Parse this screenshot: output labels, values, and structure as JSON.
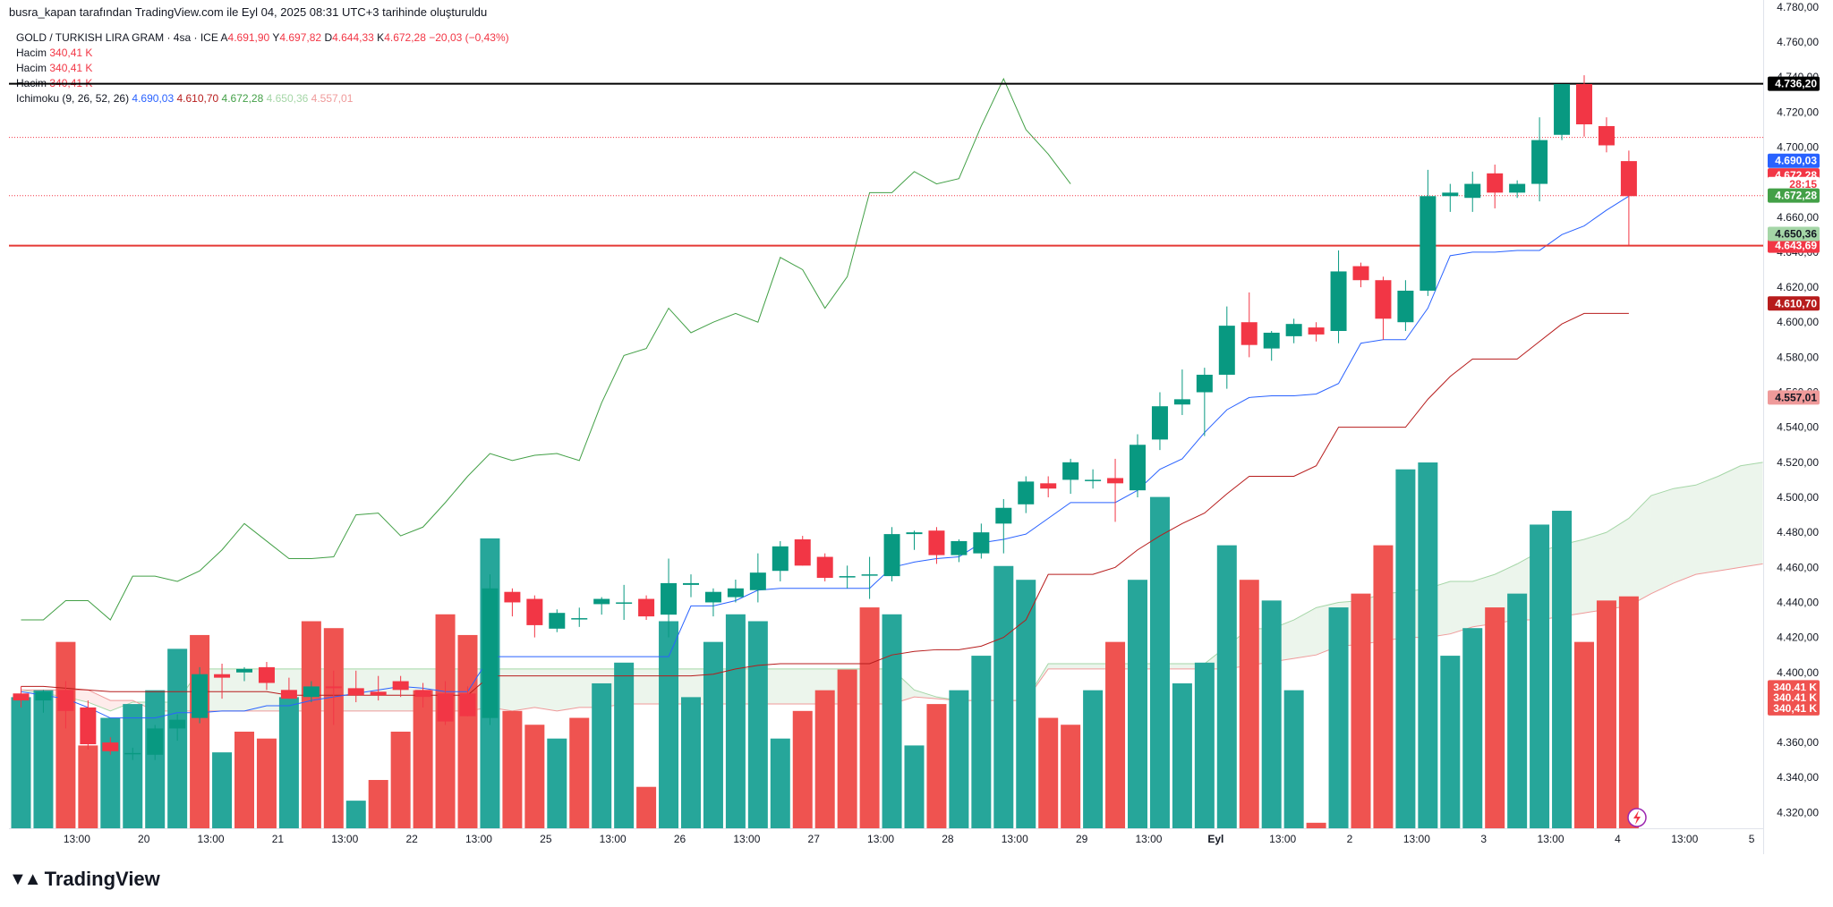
{
  "header": {
    "note": "busra_kapan tarafından TradingView.com ile Eyl 04, 2025 08:31 UTC+3 tarihinde oluşturuldu"
  },
  "legend": {
    "symbol": "GOLD / TURKISH LIRA GRAM · 4sa · ICE",
    "ohlc": [
      {
        "k": "A",
        "v": "4.691,90"
      },
      {
        "k": "Y",
        "v": "4.697,82"
      },
      {
        "k": "D",
        "v": "4.644,33"
      },
      {
        "k": "K",
        "v": "4.672,28"
      }
    ],
    "change": "−20,03 (−0,43%)",
    "volume_rows": [
      {
        "label": "Hacim",
        "value": "340,41 K"
      },
      {
        "label": "Hacim",
        "value": "340,41 K"
      },
      {
        "label": "Hacim",
        "value": "340,41 K"
      }
    ],
    "ichimoku_label": "Ichimoku (9, 26, 52, 26)",
    "ichimoku_values": [
      "4.690,03",
      "4.610,70",
      "4.672,28",
      "4.650,36",
      "4.557,01"
    ]
  },
  "colors": {
    "up": "#089981",
    "down": "#f23645",
    "vol_up": "#26a69a",
    "vol_down": "#ef5350",
    "tenkan": "#2962ff",
    "kijun": "#b71c1c",
    "chikou": "#43a047",
    "span_a": "#a5d6a7",
    "span_b": "#ef9a9a"
  },
  "branding": {
    "logo": "TradingView"
  },
  "chart_data": {
    "type": "candlestick",
    "title": "GOLD / TURKISH LIRA GRAM · 4sa · ICE",
    "y_ticks": [
      4320,
      4340,
      4360,
      4380,
      4400,
      4420,
      4440,
      4460,
      4480,
      4500,
      4520,
      4540,
      4560,
      4580,
      4600,
      4620,
      4640,
      4660,
      4680,
      4700,
      4720,
      4740,
      4760,
      4780
    ],
    "y_tick_labels": [
      "4.320,00",
      "4.340,00",
      "4.360,00",
      "4.380,00",
      "4.400,00",
      "4.420,00",
      "4.440,00",
      "4.460,00",
      "4.480,00",
      "4.500,00",
      "4.520,00",
      "4.540,00",
      "4.560,00",
      "4.580,00",
      "4.600,00",
      "4.620,00",
      "4.640,00",
      "4.660,00",
      "4.680,00",
      "4.700,00",
      "4.720,00",
      "4.740,00",
      "4.760,00",
      "4.780,00"
    ],
    "ylim": [
      4311,
      4784
    ],
    "x_ticks": [
      {
        "i": 2.5,
        "label": "13:00"
      },
      {
        "i": 5.5,
        "label": "20"
      },
      {
        "i": 8.5,
        "label": "13:00"
      },
      {
        "i": 11.5,
        "label": "21"
      },
      {
        "i": 14.5,
        "label": "13:00"
      },
      {
        "i": 17.5,
        "label": "22"
      },
      {
        "i": 20.5,
        "label": "13:00"
      },
      {
        "i": 23.5,
        "label": "25"
      },
      {
        "i": 26.5,
        "label": "13:00"
      },
      {
        "i": 29.5,
        "label": "26"
      },
      {
        "i": 32.5,
        "label": "13:00"
      },
      {
        "i": 35.5,
        "label": "27"
      },
      {
        "i": 38.5,
        "label": "13:00"
      },
      {
        "i": 41.5,
        "label": "28"
      },
      {
        "i": 44.5,
        "label": "13:00"
      },
      {
        "i": 47.5,
        "label": "29"
      },
      {
        "i": 50.5,
        "label": "13:00"
      },
      {
        "i": 53.5,
        "label": "Eyl"
      },
      {
        "i": 56.5,
        "label": "13:00"
      },
      {
        "i": 59.5,
        "label": "2"
      },
      {
        "i": 62.5,
        "label": "13:00"
      },
      {
        "i": 65.5,
        "label": "3"
      },
      {
        "i": 68.5,
        "label": "13:00"
      },
      {
        "i": 71.5,
        "label": "4"
      },
      {
        "i": 74.5,
        "label": "13:00"
      },
      {
        "i": 77.5,
        "label": "5"
      }
    ],
    "candles": [
      [
        4388,
        4392,
        4380,
        4384
      ],
      [
        4384,
        4390,
        4377,
        4389
      ],
      [
        4390,
        4395,
        4368,
        4378
      ],
      [
        4380,
        4384,
        4356,
        4359
      ],
      [
        4360,
        4363,
        4353,
        4355
      ],
      [
        4354,
        4357,
        4350,
        4354
      ],
      [
        4353,
        4370,
        4350,
        4368
      ],
      [
        4368,
        4376,
        4361,
        4373
      ],
      [
        4374,
        4403,
        4371,
        4399
      ],
      [
        4399,
        4405,
        4385,
        4397
      ],
      [
        4400,
        4403,
        4395,
        4402
      ],
      [
        4403,
        4406,
        4390,
        4394
      ],
      [
        4390,
        4397,
        4385,
        4385
      ],
      [
        4386,
        4395,
        4383,
        4392
      ],
      [
        4392,
        4401,
        4370,
        4391
      ],
      [
        4391,
        4401,
        4383,
        4387
      ],
      [
        4389,
        4398,
        4384,
        4387
      ],
      [
        4395,
        4398,
        4386,
        4390
      ],
      [
        4390,
        4394,
        4380,
        4386
      ],
      [
        4388,
        4395,
        4370,
        4372
      ],
      [
        4388,
        4392,
        4375,
        4375
      ],
      [
        4374,
        4456,
        4370,
        4448
      ],
      [
        4446,
        4448,
        4432,
        4440
      ],
      [
        4442,
        4444,
        4420,
        4427
      ],
      [
        4425,
        4436,
        4423,
        4434
      ],
      [
        4431,
        4437,
        4426,
        4431
      ],
      [
        4439,
        4443,
        4433,
        4442
      ],
      [
        4440,
        4450,
        4430,
        4440
      ],
      [
        4442,
        4444,
        4430,
        4432
      ],
      [
        4433,
        4465,
        4420,
        4451
      ],
      [
        4450,
        4456,
        4443,
        4451
      ],
      [
        4440,
        4448,
        4432,
        4446
      ],
      [
        4443,
        4453,
        4440,
        4448
      ],
      [
        4447,
        4468,
        4440,
        4457
      ],
      [
        4458,
        4475,
        4452,
        4472
      ],
      [
        4476,
        4478,
        4461,
        4461
      ],
      [
        4466,
        4468,
        4452,
        4454
      ],
      [
        4455,
        4461,
        4448,
        4455
      ],
      [
        4456,
        4466,
        4442,
        4456
      ],
      [
        4455,
        4483,
        4452,
        4479
      ],
      [
        4479,
        4481,
        4470,
        4480
      ],
      [
        4481,
        4483,
        4462,
        4467
      ],
      [
        4467,
        4476,
        4463,
        4475
      ],
      [
        4468,
        4485,
        4465,
        4480
      ],
      [
        4485,
        4499,
        4468,
        4494
      ],
      [
        4496,
        4512,
        4491,
        4509
      ],
      [
        4508,
        4512,
        4500,
        4505
      ],
      [
        4510,
        4522,
        4502,
        4520
      ],
      [
        4510,
        4516,
        4505,
        4510
      ],
      [
        4511,
        4522,
        4486,
        4508
      ],
      [
        4504,
        4536,
        4500,
        4530
      ],
      [
        4533,
        4560,
        4527,
        4552
      ],
      [
        4553,
        4573,
        4547,
        4556
      ],
      [
        4560,
        4574,
        4535,
        4570
      ],
      [
        4570,
        4609,
        4562,
        4598
      ],
      [
        4600,
        4617,
        4580,
        4587
      ],
      [
        4585,
        4595,
        4578,
        4594
      ],
      [
        4592,
        4602,
        4588,
        4599
      ],
      [
        4597,
        4600,
        4589,
        4593
      ],
      [
        4595,
        4641,
        4588,
        4629
      ],
      [
        4632,
        4634,
        4620,
        4624
      ],
      [
        4624,
        4626,
        4590,
        4602
      ],
      [
        4600,
        4624,
        4595,
        4618
      ],
      [
        4618,
        4687,
        4615,
        4672
      ],
      [
        4672,
        4679,
        4663,
        4674
      ],
      [
        4671,
        4686,
        4663,
        4679
      ],
      [
        4685,
        4690,
        4665,
        4674
      ],
      [
        4674,
        4681,
        4671,
        4679
      ],
      [
        4679,
        4717,
        4669,
        4704
      ],
      [
        4707,
        4736,
        4704,
        4736
      ],
      [
        4736,
        4741,
        4706,
        4713
      ],
      [
        4712,
        4717,
        4697,
        4701
      ],
      [
        4692,
        4698,
        4644,
        4672
      ]
    ],
    "volume": [
      {
        "v": 335,
        "up": true
      },
      {
        "v": 340,
        "up": true
      },
      {
        "v": 375,
        "up": false
      },
      {
        "v": 300,
        "up": false
      },
      {
        "v": 320,
        "up": true
      },
      {
        "v": 330,
        "up": true
      },
      {
        "v": 340,
        "up": true
      },
      {
        "v": 370,
        "up": true
      },
      {
        "v": 380,
        "up": false
      },
      {
        "v": 295,
        "up": true
      },
      {
        "v": 310,
        "up": false
      },
      {
        "v": 305,
        "up": false
      },
      {
        "v": 335,
        "up": true
      },
      {
        "v": 390,
        "up": false
      },
      {
        "v": 385,
        "up": false
      },
      {
        "v": 260,
        "up": true
      },
      {
        "v": 275,
        "up": false
      },
      {
        "v": 310,
        "up": false
      },
      {
        "v": 340,
        "up": false
      },
      {
        "v": 395,
        "up": false
      },
      {
        "v": 380,
        "up": false
      },
      {
        "v": 450,
        "up": true
      },
      {
        "v": 325,
        "up": false
      },
      {
        "v": 315,
        "up": false
      },
      {
        "v": 305,
        "up": true
      },
      {
        "v": 320,
        "up": false
      },
      {
        "v": 345,
        "up": true
      },
      {
        "v": 360,
        "up": true
      },
      {
        "v": 270,
        "up": false
      },
      {
        "v": 390,
        "up": true
      },
      {
        "v": 335,
        "up": true
      },
      {
        "v": 375,
        "up": true
      },
      {
        "v": 395,
        "up": true
      },
      {
        "v": 390,
        "up": true
      },
      {
        "v": 305,
        "up": true
      },
      {
        "v": 325,
        "up": false
      },
      {
        "v": 340,
        "up": false
      },
      {
        "v": 355,
        "up": false
      },
      {
        "v": 400,
        "up": false
      },
      {
        "v": 395,
        "up": true
      },
      {
        "v": 300,
        "up": true
      },
      {
        "v": 330,
        "up": false
      },
      {
        "v": 340,
        "up": true
      },
      {
        "v": 365,
        "up": true
      },
      {
        "v": 430,
        "up": true
      },
      {
        "v": 420,
        "up": true
      },
      {
        "v": 320,
        "up": false
      },
      {
        "v": 315,
        "up": false
      },
      {
        "v": 340,
        "up": true
      },
      {
        "v": 375,
        "up": false
      },
      {
        "v": 420,
        "up": true
      },
      {
        "v": 480,
        "up": true
      },
      {
        "v": 345,
        "up": true
      },
      {
        "v": 360,
        "up": true
      },
      {
        "v": 445,
        "up": true
      },
      {
        "v": 420,
        "up": false
      },
      {
        "v": 405,
        "up": true
      },
      {
        "v": 340,
        "up": true
      },
      {
        "v": 244,
        "up": false
      },
      {
        "v": 400,
        "up": true
      },
      {
        "v": 410,
        "up": false
      },
      {
        "v": 445,
        "up": false
      },
      {
        "v": 500,
        "up": true
      },
      {
        "v": 505,
        "up": true
      },
      {
        "v": 365,
        "up": true
      },
      {
        "v": 385,
        "up": true
      },
      {
        "v": 400,
        "up": false
      },
      {
        "v": 410,
        "up": true
      },
      {
        "v": 460,
        "up": true
      },
      {
        "v": 470,
        "up": true
      },
      {
        "v": 375,
        "up": false
      },
      {
        "v": 405,
        "up": false
      },
      {
        "v": 408,
        "up": false
      }
    ],
    "volume_ylim": [
      240,
      840
    ],
    "tenkan": [
      4389,
      4387,
      4385,
      4380,
      4374,
      4374,
      4374,
      4377,
      4377,
      4378,
      4378,
      4381,
      4381,
      4384,
      4386,
      4388,
      4390,
      4392,
      4391,
      4389,
      4389,
      4409,
      4409,
      4409,
      4409,
      4409,
      4409,
      4409,
      4409,
      4409,
      4438,
      4438,
      4441,
      4447,
      4448,
      4448,
      4448,
      4448,
      4448,
      4460,
      4463,
      4465,
      4466,
      4474,
      4476,
      4479,
      4488,
      4497,
      4497,
      4497,
      4504,
      4516,
      4522,
      4537,
      4550,
      4557,
      4558,
      4558,
      4559,
      4565,
      4588,
      4590,
      4590,
      4608,
      4638,
      4640,
      4640,
      4641,
      4641,
      4650,
      4655,
      4664,
      4672
    ],
    "kijun": [
      4392,
      4392,
      4391,
      4390,
      4389,
      4389,
      4389,
      4389,
      4389,
      4389,
      4389,
      4389,
      4387,
      4387,
      4387,
      4387,
      4387,
      4387,
      4387,
      4387,
      4387,
      4398,
      4398,
      4398,
      4398,
      4398,
      4398,
      4398,
      4398,
      4398,
      4398,
      4399,
      4402,
      4404,
      4405,
      4405,
      4405,
      4405,
      4405,
      4410,
      4412,
      4413,
      4413,
      4415,
      4420,
      4430,
      4456,
      4456,
      4456,
      4460,
      4470,
      4478,
      4485,
      4491,
      4502,
      4512,
      4512,
      4512,
      4518,
      4540,
      4540,
      4540,
      4540,
      4556,
      4569,
      4579,
      4579,
      4579,
      4589,
      4599,
      4605,
      4605,
      4605
    ],
    "chikou_x_start": 0,
    "chikou": [
      4430,
      4430,
      4441,
      4441,
      4430,
      4455,
      4455,
      4452,
      4458,
      4470,
      4485,
      4475,
      4465,
      4465,
      4466,
      4490,
      4491,
      4478,
      4483,
      4497,
      4512,
      4525,
      4521,
      4524,
      4525,
      4521,
      4554,
      4581,
      4585,
      4608,
      4594,
      4600,
      4605,
      4600,
      4637,
      4630,
      4608,
      4626,
      4674,
      4674,
      4686,
      4679,
      4682,
      4712,
      4739,
      4710,
      4696,
      4679
    ],
    "cloud_x_start": 0,
    "span_a": [
      4390,
      4388,
      4386,
      4383,
      4378,
      4383,
      4383,
      4383,
      4402,
      4402,
      4402,
      4402,
      4402,
      4402,
      4402,
      4402,
      4402,
      4402,
      4402,
      4402,
      4402,
      4402,
      4402,
      4402,
      4402,
      4402,
      4402,
      4402,
      4402,
      4402,
      4402,
      4402,
      4402,
      4402,
      4402,
      4402,
      4402,
      4402,
      4402,
      4402,
      4390,
      4386,
      4384,
      4384,
      4384,
      4384,
      4405,
      4405,
      4405,
      4405,
      4405,
      4405,
      4405,
      4405,
      4415,
      4425,
      4425,
      4430,
      4437,
      4440,
      4441,
      4445,
      4446,
      4448,
      4452,
      4452,
      4456,
      4462,
      4469,
      4473,
      4476,
      4480,
      4488,
      4501,
      4505,
      4507,
      4512,
      4518,
      4520
    ],
    "span_b": [
      4390,
      4390,
      4390,
      4390,
      4384,
      4384,
      4378,
      4378,
      4378,
      4378,
      4378,
      4378,
      4378,
      4378,
      4378,
      4378,
      4378,
      4378,
      4378,
      4378,
      4378,
      4380,
      4378,
      4380,
      4378,
      4380,
      4380,
      4382,
      4382,
      4382,
      4382,
      4382,
      4382,
      4382,
      4382,
      4382,
      4382,
      4382,
      4382,
      4382,
      4386,
      4385,
      4384,
      4384,
      4384,
      4384,
      4402,
      4402,
      4402,
      4402,
      4402,
      4402,
      4402,
      4402,
      4402,
      4404,
      4406,
      4408,
      4410,
      4415,
      4416,
      4418,
      4420,
      4420,
      4422,
      4426,
      4428,
      4430,
      4430,
      4432,
      4434,
      4436,
      4438,
      4445,
      4451,
      4456,
      4458,
      4460,
      4462
    ],
    "price_lines": [
      {
        "value": 4736.2,
        "label": "4.736,20",
        "color": "#000000",
        "style": "solid",
        "bg": "#000000",
        "fg": "#ffffff"
      },
      {
        "value": 4643.69,
        "label": "4.643,69",
        "color": "#e53935",
        "style": "solid",
        "bg": "#f23645",
        "fg": "#ffffff"
      }
    ],
    "dotted_lines": [
      {
        "value": 4705.5,
        "color": "#f23645"
      },
      {
        "value": 4672.28,
        "color": "#f23645"
      }
    ],
    "price_tags": [
      {
        "value": 4692.2,
        "label": "4.690,03",
        "bg": "#2962ff",
        "fg": "#ffffff"
      },
      {
        "value": 4683.8,
        "label": "4.672,28",
        "bg": "#f23645",
        "fg": "#ffffff"
      },
      {
        "value": 4678.9,
        "label": "28:15",
        "bg": "#ffffff",
        "fg": "#f23645"
      },
      {
        "value": 4672.3,
        "label": "4.672,28",
        "bg": "#43a047",
        "fg": "#ffffff"
      },
      {
        "value": 4650.4,
        "label": "4.650,36",
        "bg": "#a5d6a7",
        "fg": "#131722"
      },
      {
        "value": 4610.7,
        "label": "4.610,70",
        "bg": "#b71c1c",
        "fg": "#ffffff"
      },
      {
        "value": 4557.0,
        "label": "4.557,01",
        "bg": "#ef9a9a",
        "fg": "#131722"
      }
    ],
    "volume_tags": [
      {
        "y_price": 4391.5,
        "label": "340,41 K"
      },
      {
        "y_price": 4385.5,
        "label": "340,41 K"
      },
      {
        "y_price": 4379.5,
        "label": "340,41 K"
      }
    ]
  }
}
